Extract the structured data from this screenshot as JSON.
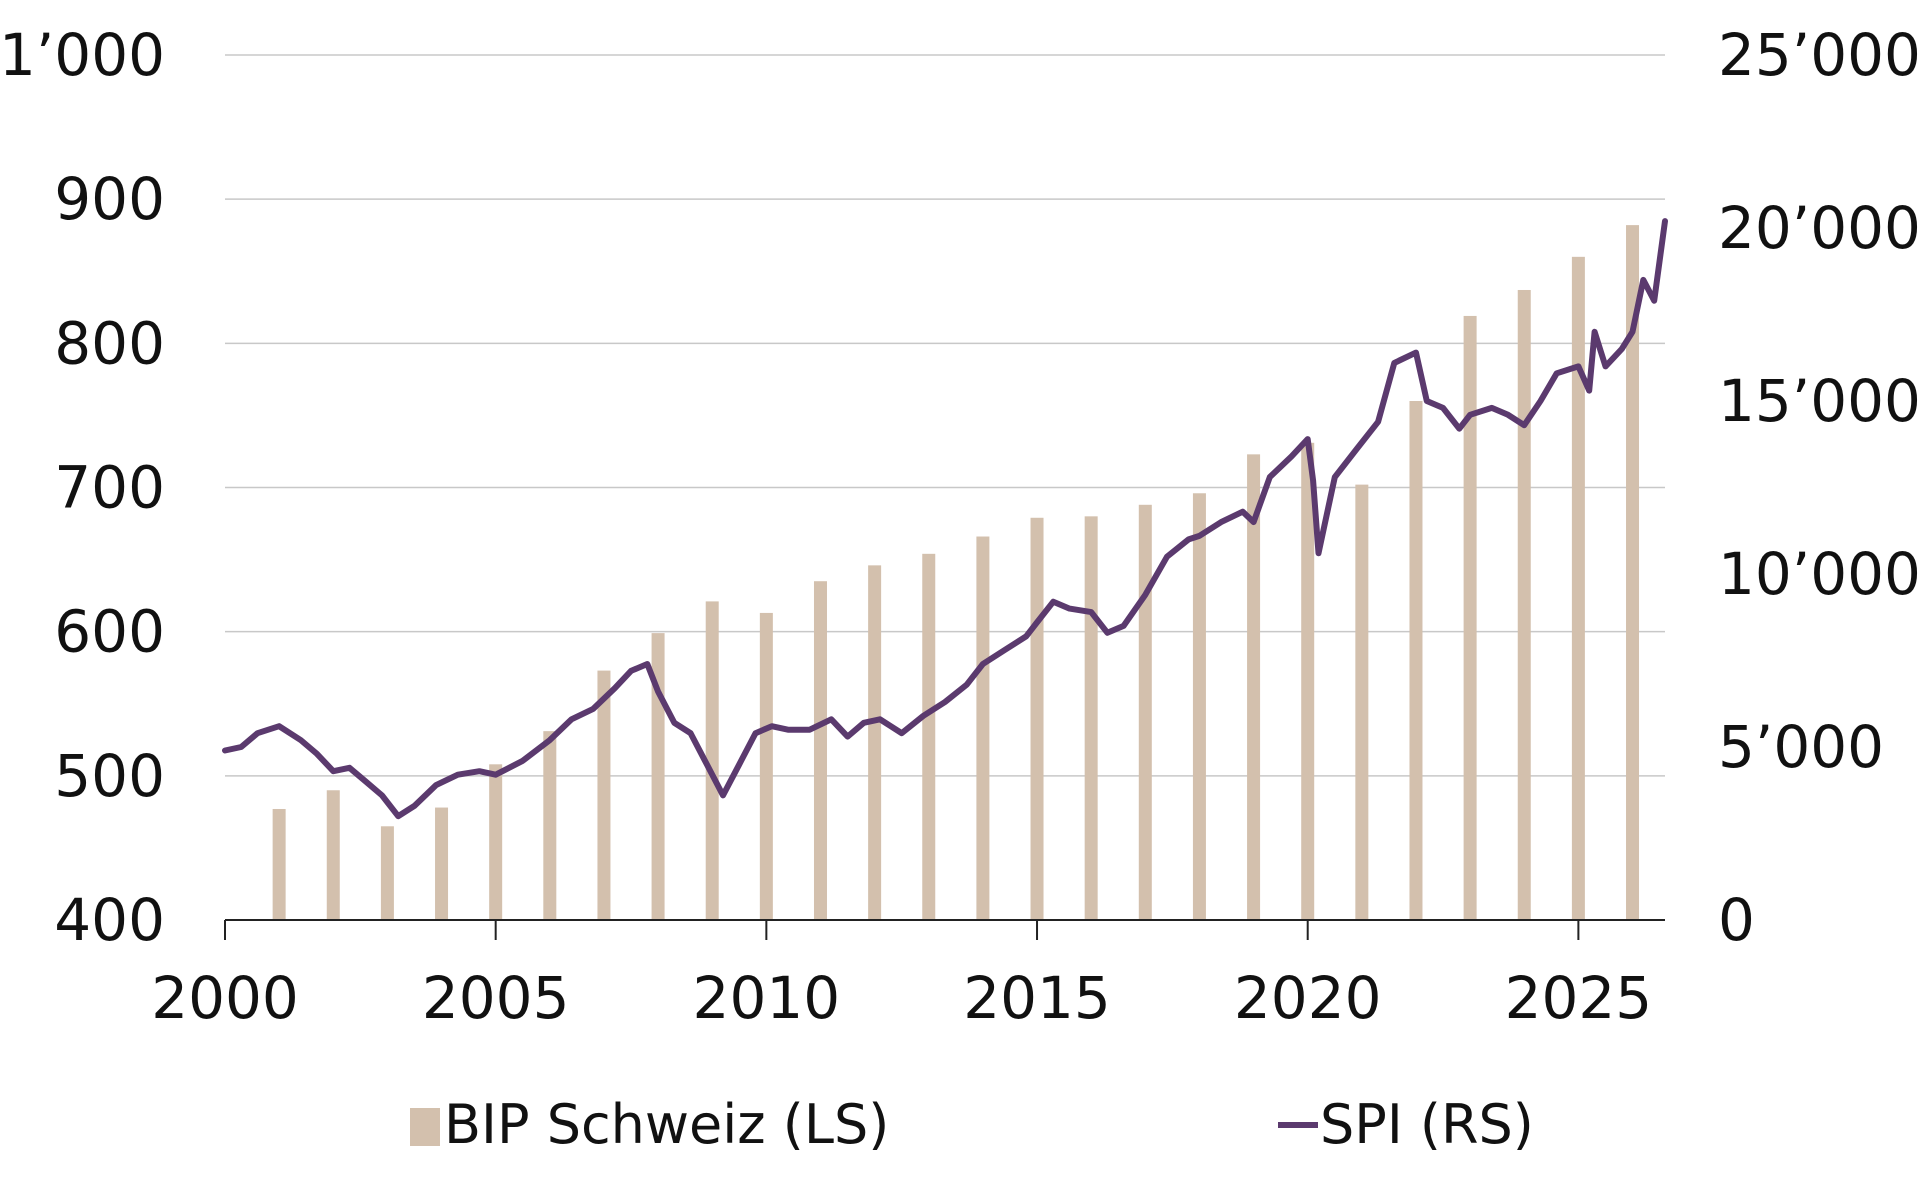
{
  "chart_data": {
    "type": "bar+line",
    "title": "",
    "x_ticks": [
      "2000",
      "2005",
      "2010",
      "2015",
      "2020",
      "2025"
    ],
    "xlim": [
      2000,
      2026.6
    ],
    "left_axis": {
      "ticks": [
        "400",
        "500",
        "600",
        "700",
        "800",
        "900",
        "1’000"
      ],
      "ylim": [
        400,
        1000
      ]
    },
    "right_axis": {
      "ticks": [
        "0",
        "5’000",
        "10’000",
        "15’000",
        "20’000",
        "25’000"
      ],
      "ylim": [
        0,
        25000
      ]
    },
    "grid": "horizontal",
    "legend_position": "bottom",
    "colors": {
      "bars": "#d3c0ad",
      "line": "#5b3a6e",
      "grid": "#c8c8c8",
      "axis": "#222222"
    },
    "series": [
      {
        "name": "BIP Schweiz (LS)",
        "type": "bar",
        "axis": "left",
        "x": [
          2001,
          2002,
          2003,
          2004,
          2005,
          2006,
          2007,
          2008,
          2009,
          2010,
          2011,
          2012,
          2013,
          2014,
          2015,
          2016,
          2017,
          2018,
          2019,
          2020,
          2021,
          2022,
          2023,
          2024,
          2025,
          2026
        ],
        "values": [
          477,
          490,
          465,
          478,
          508,
          531,
          573,
          599,
          621,
          613,
          635,
          646,
          654,
          666,
          679,
          680,
          688,
          696,
          723,
          731,
          702,
          760,
          819,
          837,
          860,
          882
        ]
      },
      {
        "name": "SPI (RS)",
        "type": "line",
        "axis": "right",
        "x": [
          2000.0,
          2000.3,
          2000.6,
          2001.0,
          2001.4,
          2001.7,
          2002.0,
          2002.3,
          2002.6,
          2002.9,
          2003.2,
          2003.5,
          2003.9,
          2004.3,
          2004.7,
          2005.0,
          2005.5,
          2006.0,
          2006.4,
          2006.8,
          2007.2,
          2007.5,
          2007.8,
          2008.0,
          2008.3,
          2008.6,
          2008.9,
          2009.2,
          2009.5,
          2009.8,
          2010.1,
          2010.4,
          2010.8,
          2011.2,
          2011.5,
          2011.8,
          2012.1,
          2012.5,
          2012.9,
          2013.3,
          2013.7,
          2014.0,
          2014.4,
          2014.8,
          2015.0,
          2015.3,
          2015.6,
          2016.0,
          2016.3,
          2016.6,
          2017.0,
          2017.4,
          2017.8,
          2018.0,
          2018.4,
          2018.8,
          2019.0,
          2019.3,
          2019.7,
          2020.0,
          2020.1,
          2020.2,
          2020.5,
          2020.9,
          2021.3,
          2021.6,
          2022.0,
          2022.2,
          2022.5,
          2022.8,
          2023.0,
          2023.4,
          2023.7,
          2024.0,
          2024.3,
          2024.6,
          2025.0,
          2025.2,
          2025.3,
          2025.5,
          2025.8,
          2026.0,
          2026.2,
          2026.4,
          2026.6
        ],
        "values": [
          4900,
          5000,
          5400,
          5600,
          5200,
          4800,
          4300,
          4400,
          4000,
          3600,
          3000,
          3300,
          3900,
          4200,
          4300,
          4200,
          4600,
          5200,
          5800,
          6100,
          6700,
          7200,
          7400,
          6600,
          5700,
          5400,
          4500,
          3600,
          4500,
          5400,
          5600,
          5500,
          5500,
          5800,
          5300,
          5700,
          5800,
          5400,
          5900,
          6300,
          6800,
          7400,
          7800,
          8200,
          8600,
          9200,
          9000,
          8900,
          8300,
          8500,
          9400,
          10500,
          11000,
          11100,
          11500,
          11800,
          11500,
          12800,
          13400,
          13900,
          12700,
          10600,
          12800,
          13600,
          14400,
          16100,
          16400,
          15000,
          14800,
          14200,
          14600,
          14800,
          14600,
          14300,
          15000,
          15800,
          16000,
          15300,
          17000,
          16000,
          16500,
          17000,
          18500,
          17900,
          20200
        ]
      }
    ]
  }
}
